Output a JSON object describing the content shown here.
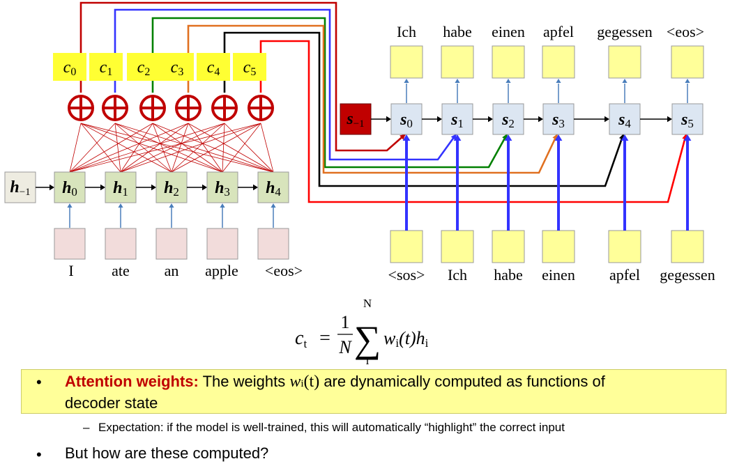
{
  "context_labels": [
    "c",
    "c",
    "c",
    "c",
    "c",
    "c"
  ],
  "context_subs": [
    "0",
    "1",
    "2",
    "3",
    "4",
    "5"
  ],
  "encoder": {
    "init_state": {
      "base": "h",
      "sub": "−1"
    },
    "states": [
      {
        "base": "h",
        "sub": "0"
      },
      {
        "base": "h",
        "sub": "1"
      },
      {
        "base": "h",
        "sub": "2"
      },
      {
        "base": "h",
        "sub": "3"
      },
      {
        "base": "h",
        "sub": "4"
      }
    ],
    "inputs": [
      "I",
      "ate",
      "an",
      "apple",
      "<eos>"
    ]
  },
  "decoder": {
    "init_state": {
      "base": "s",
      "sub": "−1"
    },
    "states": [
      {
        "base": "s",
        "sub": "0"
      },
      {
        "base": "s",
        "sub": "1"
      },
      {
        "base": "s",
        "sub": "2"
      },
      {
        "base": "s",
        "sub": "3"
      },
      {
        "base": "s",
        "sub": "4"
      },
      {
        "base": "s",
        "sub": "5"
      }
    ],
    "outputs": [
      "Ich",
      "habe",
      "einen",
      "apfel",
      "gegessen",
      "<eos>"
    ],
    "inputs": [
      "<sos>",
      "Ich",
      "habe",
      "einen",
      "apfel",
      "gegessen"
    ]
  },
  "formula": {
    "lhs": "c",
    "lhs_sub": "t",
    "eq": "=",
    "frac_num": "1",
    "frac_den": "N",
    "sum_top": "N",
    "sum_bottom": "i",
    "sum_symbol": "∑",
    "term": "w",
    "term_sub": "i",
    "term_arg": "(t)",
    "h": "h",
    "h_sub": "i"
  },
  "bullets": {
    "b1_highlight": "Attention weights:",
    "b1_text_a": "The weights",
    "b1_math": "w",
    "b1_math_sub": "i",
    "b1_math_arg": "(t)",
    "b1_text_b": "are dynamically computed as functions of",
    "b1_text_c": "decoder state",
    "sub1_dash": "–",
    "sub1": "Expectation: if the model is well-trained, this will automatically “highlight” the correct input",
    "b2": "But how are these computed?",
    "dot": "•"
  },
  "colors": {
    "context_bg": "#ffff33",
    "encoder_box": "#d8e4bc",
    "input_box": "#f2dcdb",
    "decoder_box": "#dce6f2",
    "output_box": "#ffff99",
    "s_init_box": "#c00000",
    "plus_red": "#c00000",
    "line_red": "#c00000",
    "line_blue": "#3333ff",
    "line_green": "#008000",
    "line_orange": "#e07020",
    "line_black": "#000000",
    "line_red2": "#ff0000",
    "highlight_red": "#c00000"
  }
}
